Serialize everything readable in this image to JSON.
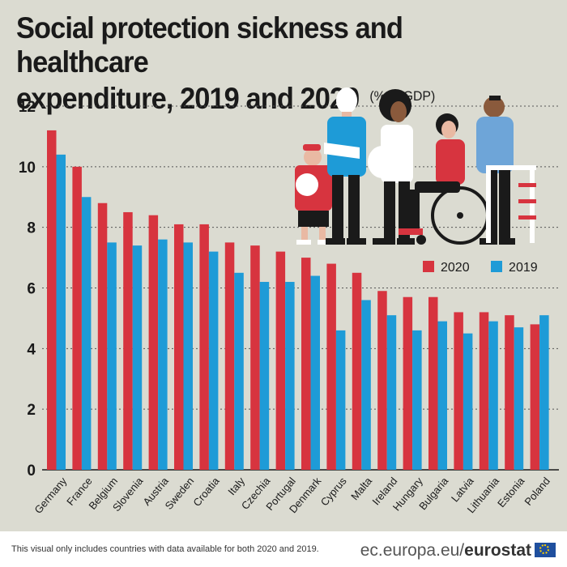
{
  "header": {
    "title_line1": "Social protection sickness and healthcare",
    "title_line2": "expenditure, 2019 and 2020",
    "unit": "(% of GDP)"
  },
  "footer": {
    "note": "This visual only includes countries with data available for both 2020 and 2019.",
    "site": "ec.europa.eu/",
    "brand": "eurostat"
  },
  "colors": {
    "s2020": "#d7343f",
    "s2019": "#1e9bd7",
    "grid": "#555555",
    "background": "#dbdbd1"
  },
  "illustration": {
    "name": "people-with-health-and-mobility-aids-illustration"
  },
  "chart_data": {
    "type": "bar",
    "title": "Social protection sickness and healthcare expenditure, 2019 and 2020 (% of GDP)",
    "xlabel": "",
    "ylabel": "",
    "ylim": [
      0,
      12
    ],
    "yticks": [
      "0",
      "2",
      "4",
      "6",
      "8",
      "10",
      "12"
    ],
    "grid": true,
    "legend_position": "right",
    "categories": [
      "Germany",
      "France",
      "Belgium",
      "Slovenia",
      "Austria",
      "Sweden",
      "Croatia",
      "Italy",
      "Czechia",
      "Portugal",
      "Denmark",
      "Cyprus",
      "Malta",
      "Ireland",
      "Hungary",
      "Bulgaria",
      "Latvia",
      "Lithuania",
      "Estonia",
      "Poland"
    ],
    "series": [
      {
        "name": "2020",
        "values": [
          11.2,
          10.0,
          8.8,
          8.5,
          8.4,
          8.1,
          8.1,
          7.5,
          7.4,
          7.2,
          7.0,
          6.8,
          6.5,
          5.9,
          5.7,
          5.7,
          5.2,
          5.2,
          5.1,
          4.8
        ]
      },
      {
        "name": "2019",
        "values": [
          10.4,
          9.0,
          7.5,
          7.4,
          7.6,
          7.5,
          7.2,
          6.5,
          6.2,
          6.2,
          6.4,
          4.6,
          5.6,
          5.1,
          4.6,
          4.9,
          4.5,
          4.9,
          4.7,
          5.1
        ]
      }
    ]
  }
}
